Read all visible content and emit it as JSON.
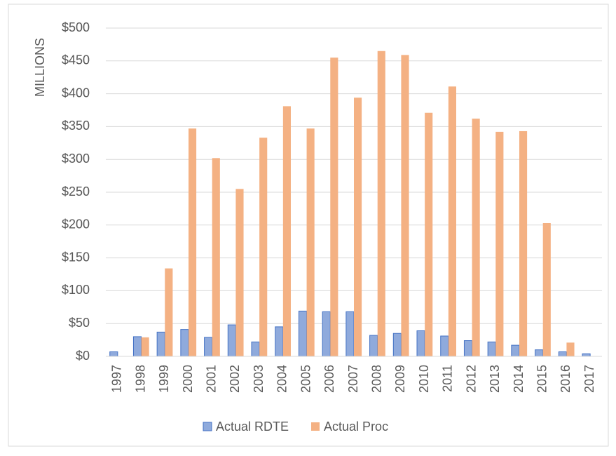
{
  "chart_data": {
    "type": "bar",
    "y_label": "MILLIONS",
    "categories": [
      "1997",
      "1998",
      "1999",
      "2000",
      "2001",
      "2002",
      "2003",
      "2004",
      "2005",
      "2006",
      "2007",
      "2008",
      "2009",
      "2010",
      "2011",
      "2012",
      "2013",
      "2014",
      "2015",
      "2016",
      "2017"
    ],
    "series": [
      {
        "name": "Actual RDTE",
        "color": "#8faadc",
        "values": [
          7,
          30,
          37,
          41,
          29,
          48,
          22,
          45,
          69,
          68,
          68,
          32,
          35,
          39,
          31,
          24,
          22,
          17,
          10,
          7,
          4
        ]
      },
      {
        "name": "Actual Proc",
        "color": "#f4b183",
        "values": [
          null,
          29,
          134,
          347,
          302,
          255,
          333,
          381,
          347,
          455,
          394,
          465,
          459,
          371,
          411,
          362,
          342,
          343,
          203,
          21,
          null
        ]
      }
    ],
    "ylim": [
      0,
      500
    ],
    "yticks": [
      {
        "value": 0,
        "label": "$0"
      },
      {
        "value": 50,
        "label": "$50"
      },
      {
        "value": 100,
        "label": "$100"
      },
      {
        "value": 150,
        "label": "$150"
      },
      {
        "value": 200,
        "label": "$200"
      },
      {
        "value": 250,
        "label": "$250"
      },
      {
        "value": 300,
        "label": "$300"
      },
      {
        "value": 350,
        "label": "$350"
      },
      {
        "value": 400,
        "label": "$400"
      },
      {
        "value": 450,
        "label": "$450"
      },
      {
        "value": 500,
        "label": "$500"
      }
    ],
    "grid": true,
    "legend": "bottom"
  }
}
